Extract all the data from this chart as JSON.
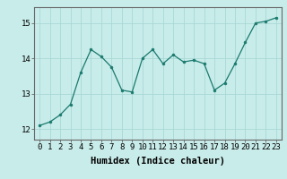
{
  "x": [
    0,
    1,
    2,
    3,
    4,
    5,
    6,
    7,
    8,
    9,
    10,
    11,
    12,
    13,
    14,
    15,
    16,
    17,
    18,
    19,
    20,
    21,
    22,
    23
  ],
  "y": [
    12.1,
    12.2,
    12.4,
    12.7,
    13.6,
    14.25,
    14.05,
    13.75,
    13.1,
    13.05,
    14.0,
    14.25,
    13.85,
    14.1,
    13.9,
    13.95,
    13.85,
    13.1,
    13.3,
    13.85,
    14.45,
    15.0,
    15.05,
    15.15
  ],
  "line_color": "#1a7a6e",
  "marker_color": "#1a7a6e",
  "bg_color": "#c8ecea",
  "grid_color": "#a8d8d5",
  "xlabel": "Humidex (Indice chaleur)",
  "ylim": [
    11.7,
    15.45
  ],
  "xlim": [
    -0.5,
    23.5
  ],
  "yticks": [
    12,
    13,
    14,
    15
  ],
  "xticks": [
    0,
    1,
    2,
    3,
    4,
    5,
    6,
    7,
    8,
    9,
    10,
    11,
    12,
    13,
    14,
    15,
    16,
    17,
    18,
    19,
    20,
    21,
    22,
    23
  ],
  "xlabel_fontsize": 7.5,
  "tick_fontsize": 6.5
}
